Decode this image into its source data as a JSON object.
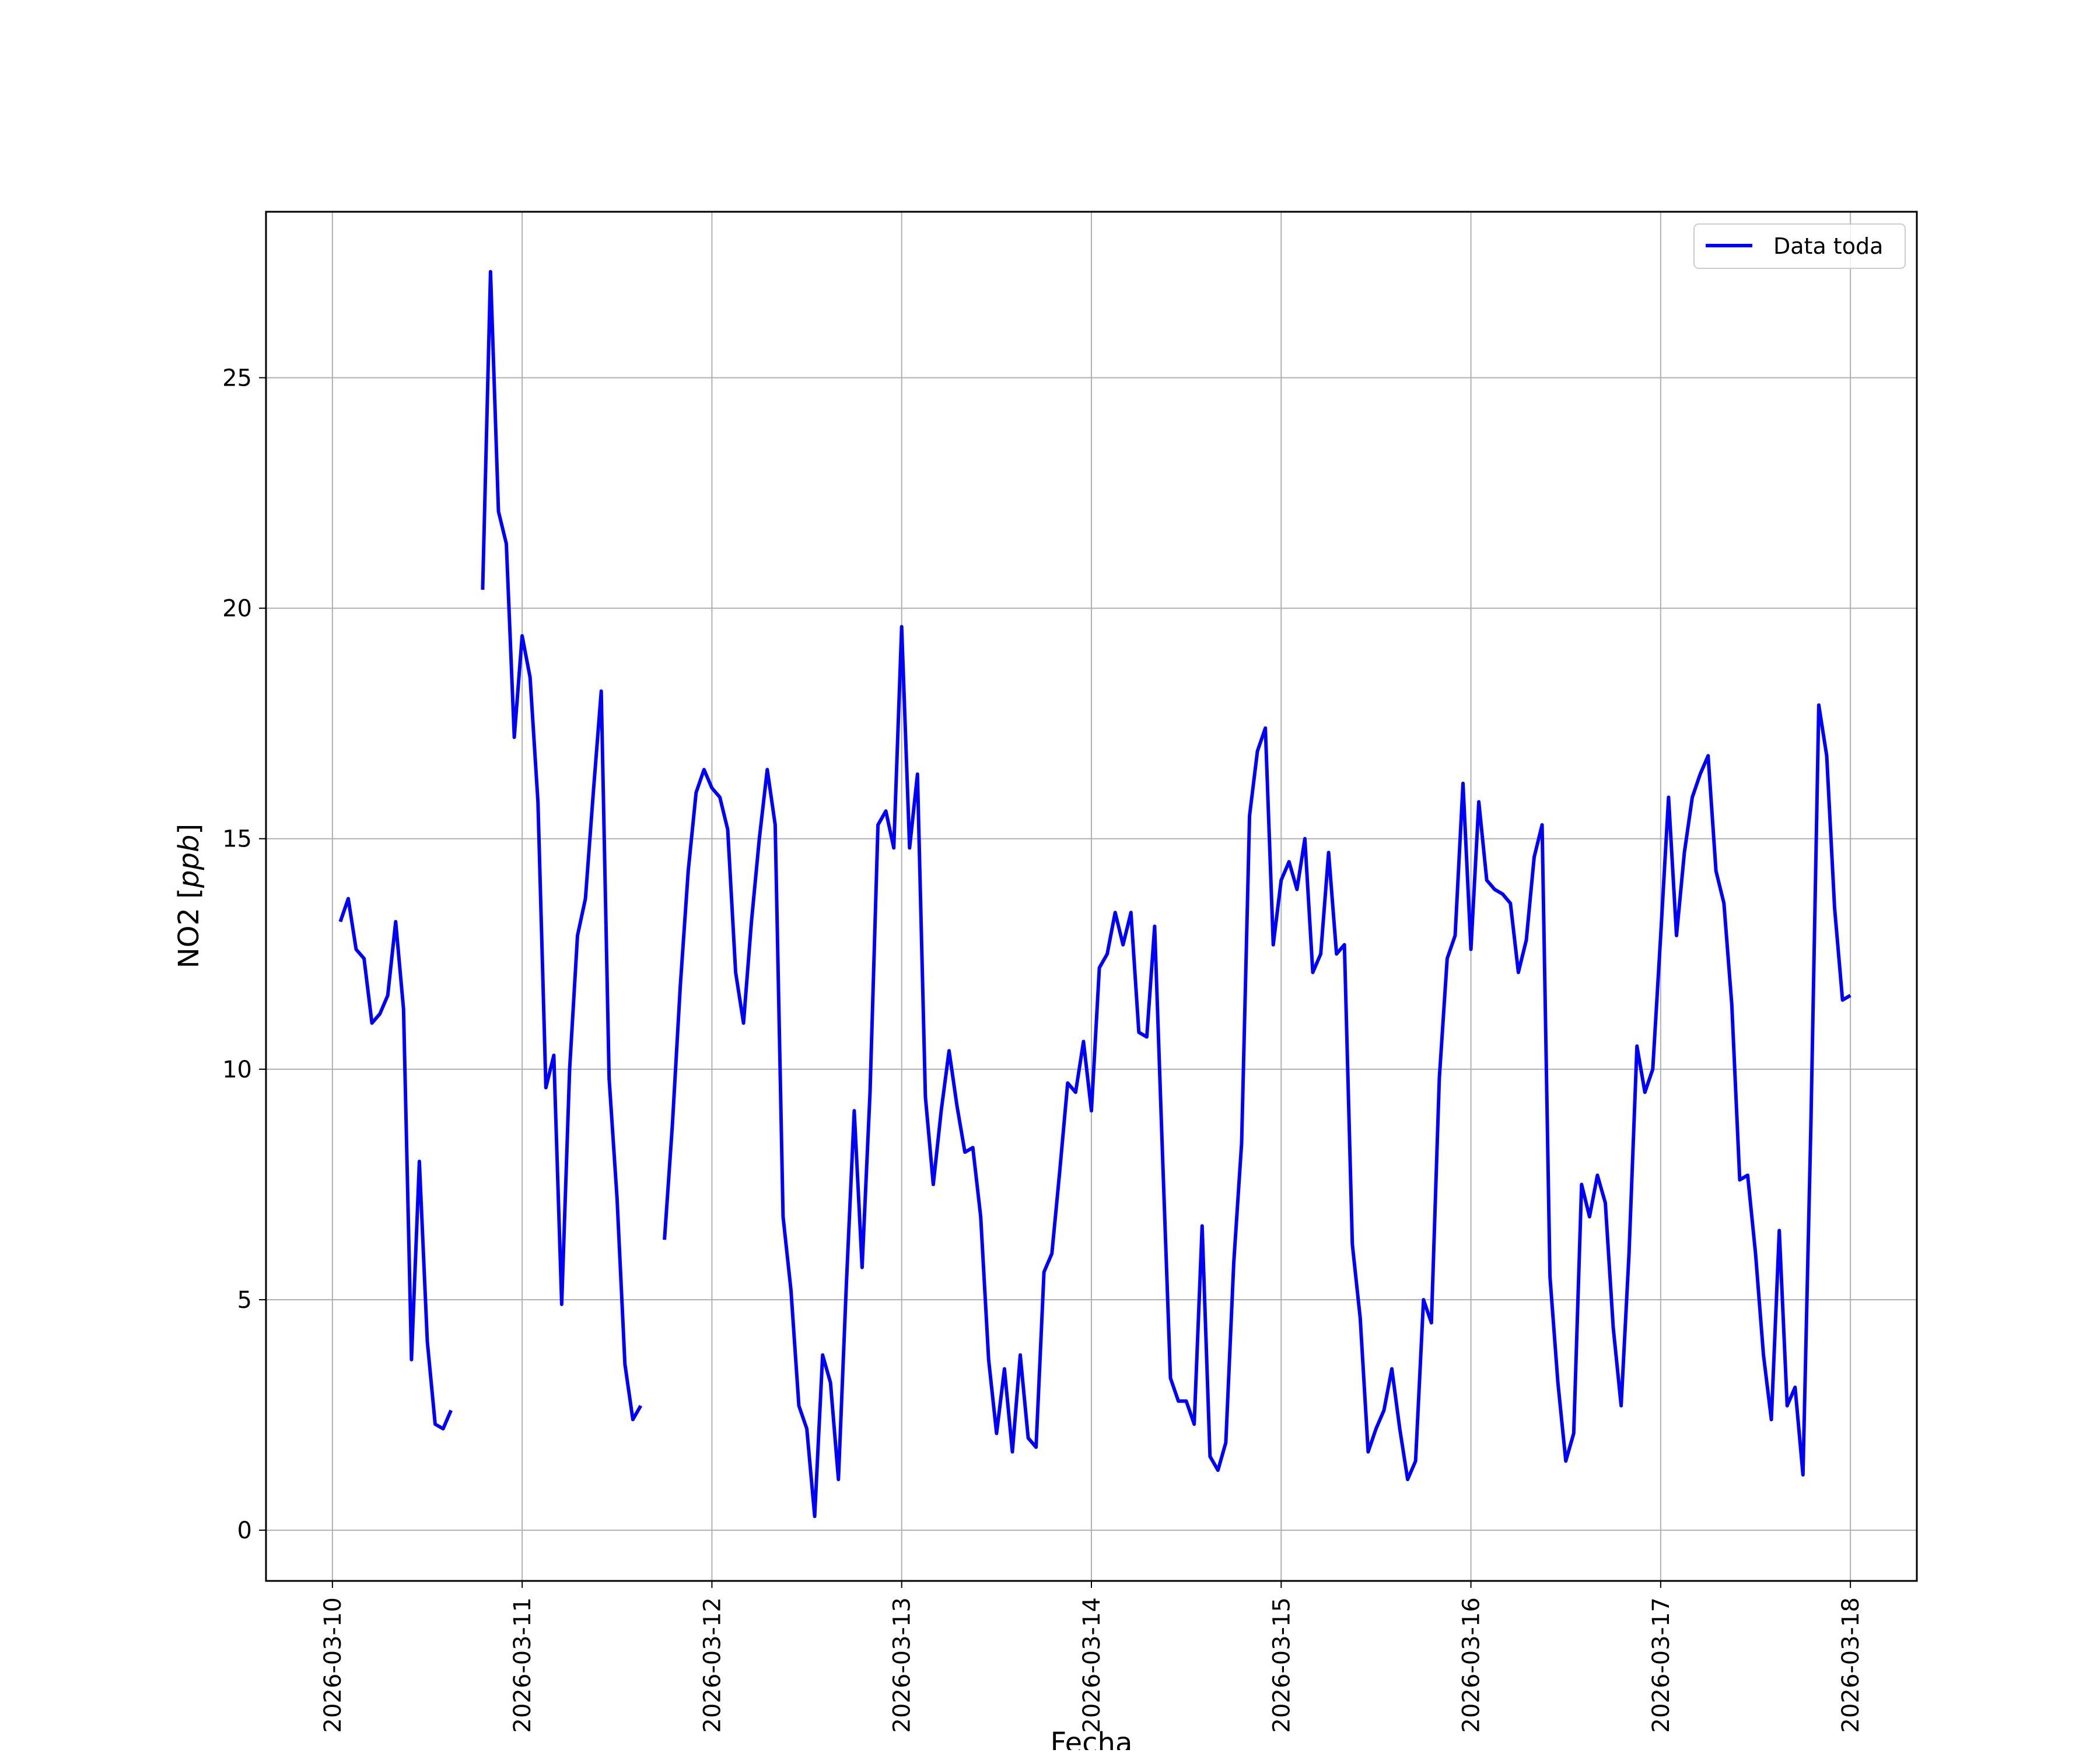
{
  "chart_data": {
    "type": "line",
    "title": "",
    "xlabel": "Fecha",
    "ylabel": "NO2 [ppb]",
    "ylabel_main": "NO2 [",
    "ylabel_italic": "ppb",
    "ylabel_close": "]",
    "xlim": [
      "2026-03-09 15:36",
      "2026-03-18 08:24"
    ],
    "ylim": [
      -1.1,
      28.6
    ],
    "x_tick_labels": [
      "2026-03-10",
      "2026-03-11",
      "2026-03-12",
      "2026-03-13",
      "2026-03-14",
      "2026-03-15",
      "2026-03-16",
      "2026-03-17",
      "2026-03-18"
    ],
    "y_ticks": [
      0,
      5,
      10,
      15,
      20,
      25
    ],
    "y_tick_labels": [
      "0",
      "5",
      "10",
      "15",
      "20",
      "25"
    ],
    "grid": true,
    "legend_position": "top-right",
    "colors": {
      "series": "#0000ff",
      "grid": "#b0b0b0",
      "axes": "#000000"
    },
    "series": [
      {
        "name": "Data toda",
        "points": [
          [
            "2026-03-10 01:00",
            13.2
          ],
          [
            "2026-03-10 02:00",
            13.7
          ],
          [
            "2026-03-10 03:00",
            12.6
          ],
          [
            "2026-03-10 04:00",
            12.4
          ],
          [
            "2026-03-10 05:00",
            11.0
          ],
          [
            "2026-03-10 06:00",
            11.2
          ],
          [
            "2026-03-10 07:00",
            11.6
          ],
          [
            "2026-03-10 08:00",
            13.2
          ],
          [
            "2026-03-10 09:00",
            11.3
          ],
          [
            "2026-03-10 10:00",
            3.7
          ],
          [
            "2026-03-10 11:00",
            8.0
          ],
          [
            "2026-03-10 12:00",
            4.1
          ],
          [
            "2026-03-10 13:00",
            2.3
          ],
          [
            "2026-03-10 14:00",
            2.2
          ],
          [
            "2026-03-10 15:00",
            2.6
          ],
          [
            "2026-03-10 16:00",
            null
          ],
          [
            "2026-03-10 19:00",
            20.4
          ],
          [
            "2026-03-10 20:00",
            27.3
          ],
          [
            "2026-03-10 21:00",
            22.1
          ],
          [
            "2026-03-10 22:00",
            21.4
          ],
          [
            "2026-03-10 23:00",
            17.2
          ],
          [
            "2026-03-11 00:00",
            19.4
          ],
          [
            "2026-03-11 01:00",
            18.5
          ],
          [
            "2026-03-11 02:00",
            15.8
          ],
          [
            "2026-03-11 03:00",
            9.6
          ],
          [
            "2026-03-11 04:00",
            10.3
          ],
          [
            "2026-03-11 05:00",
            4.9
          ],
          [
            "2026-03-11 06:00",
            10.0
          ],
          [
            "2026-03-11 07:00",
            12.9
          ],
          [
            "2026-03-11 08:00",
            13.7
          ],
          [
            "2026-03-11 09:00",
            16.0
          ],
          [
            "2026-03-11 10:00",
            18.2
          ],
          [
            "2026-03-11 11:00",
            9.8
          ],
          [
            "2026-03-11 12:00",
            7.2
          ],
          [
            "2026-03-11 13:00",
            3.6
          ],
          [
            "2026-03-11 14:00",
            2.4
          ],
          [
            "2026-03-11 15:00",
            2.7
          ],
          [
            "2026-03-11 16:00",
            null
          ],
          [
            "2026-03-11 18:00",
            6.3
          ],
          [
            "2026-03-11 19:00",
            8.8
          ],
          [
            "2026-03-11 20:00",
            11.8
          ],
          [
            "2026-03-11 21:00",
            14.3
          ],
          [
            "2026-03-11 22:00",
            16.0
          ],
          [
            "2026-03-11 23:00",
            16.5
          ],
          [
            "2026-03-12 00:00",
            16.1
          ],
          [
            "2026-03-12 01:00",
            15.9
          ],
          [
            "2026-03-12 02:00",
            15.2
          ],
          [
            "2026-03-12 03:00",
            12.1
          ],
          [
            "2026-03-12 04:00",
            11.0
          ],
          [
            "2026-03-12 05:00",
            13.2
          ],
          [
            "2026-03-12 06:00",
            15.0
          ],
          [
            "2026-03-12 07:00",
            16.5
          ],
          [
            "2026-03-12 08:00",
            15.3
          ],
          [
            "2026-03-12 09:00",
            6.8
          ],
          [
            "2026-03-12 10:00",
            5.2
          ],
          [
            "2026-03-12 11:00",
            2.7
          ],
          [
            "2026-03-12 12:00",
            2.2
          ],
          [
            "2026-03-12 13:00",
            0.3
          ],
          [
            "2026-03-12 14:00",
            3.8
          ],
          [
            "2026-03-12 15:00",
            3.2
          ],
          [
            "2026-03-12 16:00",
            1.1
          ],
          [
            "2026-03-12 17:00",
            5.3
          ],
          [
            "2026-03-12 18:00",
            9.1
          ],
          [
            "2026-03-12 19:00",
            5.7
          ],
          [
            "2026-03-12 20:00",
            9.5
          ],
          [
            "2026-03-12 21:00",
            15.3
          ],
          [
            "2026-03-12 22:00",
            15.6
          ],
          [
            "2026-03-12 23:00",
            14.8
          ],
          [
            "2026-03-13 00:00",
            19.6
          ],
          [
            "2026-03-13 01:00",
            14.8
          ],
          [
            "2026-03-13 02:00",
            16.4
          ],
          [
            "2026-03-13 03:00",
            9.4
          ],
          [
            "2026-03-13 04:00",
            7.5
          ],
          [
            "2026-03-13 05:00",
            9.1
          ],
          [
            "2026-03-13 06:00",
            10.4
          ],
          [
            "2026-03-13 07:00",
            9.2
          ],
          [
            "2026-03-13 08:00",
            8.2
          ],
          [
            "2026-03-13 09:00",
            8.3
          ],
          [
            "2026-03-13 10:00",
            6.8
          ],
          [
            "2026-03-13 11:00",
            3.7
          ],
          [
            "2026-03-13 12:00",
            2.1
          ],
          [
            "2026-03-13 13:00",
            3.5
          ],
          [
            "2026-03-13 14:00",
            1.7
          ],
          [
            "2026-03-13 15:00",
            3.8
          ],
          [
            "2026-03-13 16:00",
            2.0
          ],
          [
            "2026-03-13 17:00",
            1.8
          ],
          [
            "2026-03-13 18:00",
            5.6
          ],
          [
            "2026-03-13 19:00",
            6.0
          ],
          [
            "2026-03-13 20:00",
            7.8
          ],
          [
            "2026-03-13 21:00",
            9.7
          ],
          [
            "2026-03-13 22:00",
            9.5
          ],
          [
            "2026-03-13 23:00",
            10.6
          ],
          [
            "2026-03-14 00:00",
            9.1
          ],
          [
            "2026-03-14 01:00",
            12.2
          ],
          [
            "2026-03-14 02:00",
            12.5
          ],
          [
            "2026-03-14 03:00",
            13.4
          ],
          [
            "2026-03-14 04:00",
            12.7
          ],
          [
            "2026-03-14 05:00",
            13.4
          ],
          [
            "2026-03-14 06:00",
            10.8
          ],
          [
            "2026-03-14 07:00",
            10.7
          ],
          [
            "2026-03-14 08:00",
            13.1
          ],
          [
            "2026-03-14 09:00",
            8.1
          ],
          [
            "2026-03-14 10:00",
            3.3
          ],
          [
            "2026-03-14 11:00",
            2.8
          ],
          [
            "2026-03-14 12:00",
            2.8
          ],
          [
            "2026-03-14 13:00",
            2.3
          ],
          [
            "2026-03-14 14:00",
            6.6
          ],
          [
            "2026-03-14 15:00",
            1.6
          ],
          [
            "2026-03-14 16:00",
            1.3
          ],
          [
            "2026-03-14 17:00",
            1.9
          ],
          [
            "2026-03-14 18:00",
            5.8
          ],
          [
            "2026-03-14 19:00",
            8.4
          ],
          [
            "2026-03-14 20:00",
            15.5
          ],
          [
            "2026-03-14 21:00",
            16.9
          ],
          [
            "2026-03-14 22:00",
            17.4
          ],
          [
            "2026-03-14 23:00",
            12.7
          ],
          [
            "2026-03-15 00:00",
            14.1
          ],
          [
            "2026-03-15 01:00",
            14.5
          ],
          [
            "2026-03-15 02:00",
            13.9
          ],
          [
            "2026-03-15 03:00",
            15.0
          ],
          [
            "2026-03-15 04:00",
            12.1
          ],
          [
            "2026-03-15 05:00",
            12.5
          ],
          [
            "2026-03-15 06:00",
            14.7
          ],
          [
            "2026-03-15 07:00",
            12.5
          ],
          [
            "2026-03-15 08:00",
            12.7
          ],
          [
            "2026-03-15 09:00",
            6.2
          ],
          [
            "2026-03-15 10:00",
            4.6
          ],
          [
            "2026-03-15 11:00",
            1.7
          ],
          [
            "2026-03-15 12:00",
            2.2
          ],
          [
            "2026-03-15 13:00",
            2.6
          ],
          [
            "2026-03-15 14:00",
            3.5
          ],
          [
            "2026-03-15 15:00",
            2.2
          ],
          [
            "2026-03-15 16:00",
            1.1
          ],
          [
            "2026-03-15 17:00",
            1.5
          ],
          [
            "2026-03-15 18:00",
            5.0
          ],
          [
            "2026-03-15 19:00",
            4.5
          ],
          [
            "2026-03-15 20:00",
            9.8
          ],
          [
            "2026-03-15 21:00",
            12.4
          ],
          [
            "2026-03-15 22:00",
            12.9
          ],
          [
            "2026-03-15 23:00",
            16.2
          ],
          [
            "2026-03-16 00:00",
            12.6
          ],
          [
            "2026-03-16 01:00",
            15.8
          ],
          [
            "2026-03-16 02:00",
            14.1
          ],
          [
            "2026-03-16 03:00",
            13.9
          ],
          [
            "2026-03-16 04:00",
            13.8
          ],
          [
            "2026-03-16 05:00",
            13.6
          ],
          [
            "2026-03-16 06:00",
            12.1
          ],
          [
            "2026-03-16 07:00",
            12.8
          ],
          [
            "2026-03-16 08:00",
            14.6
          ],
          [
            "2026-03-16 09:00",
            15.3
          ],
          [
            "2026-03-16 10:00",
            5.5
          ],
          [
            "2026-03-16 11:00",
            3.2
          ],
          [
            "2026-03-16 12:00",
            1.5
          ],
          [
            "2026-03-16 13:00",
            2.1
          ],
          [
            "2026-03-16 14:00",
            7.5
          ],
          [
            "2026-03-16 15:00",
            6.8
          ],
          [
            "2026-03-16 16:00",
            7.7
          ],
          [
            "2026-03-16 17:00",
            7.1
          ],
          [
            "2026-03-16 18:00",
            4.4
          ],
          [
            "2026-03-16 19:00",
            2.7
          ],
          [
            "2026-03-16 20:00",
            6.0
          ],
          [
            "2026-03-16 21:00",
            10.5
          ],
          [
            "2026-03-16 22:00",
            9.5
          ],
          [
            "2026-03-16 23:00",
            10.0
          ],
          [
            "2026-03-17 00:00",
            12.9
          ],
          [
            "2026-03-17 01:00",
            15.9
          ],
          [
            "2026-03-17 02:00",
            12.9
          ],
          [
            "2026-03-17 03:00",
            14.7
          ],
          [
            "2026-03-17 04:00",
            15.9
          ],
          [
            "2026-03-17 05:00",
            16.4
          ],
          [
            "2026-03-17 06:00",
            16.8
          ],
          [
            "2026-03-17 07:00",
            14.3
          ],
          [
            "2026-03-17 08:00",
            13.6
          ],
          [
            "2026-03-17 09:00",
            11.4
          ],
          [
            "2026-03-17 10:00",
            7.6
          ],
          [
            "2026-03-17 11:00",
            7.7
          ],
          [
            "2026-03-17 12:00",
            6.0
          ],
          [
            "2026-03-17 13:00",
            3.8
          ],
          [
            "2026-03-17 14:00",
            2.4
          ],
          [
            "2026-03-17 15:00",
            6.5
          ],
          [
            "2026-03-17 16:00",
            2.7
          ],
          [
            "2026-03-17 17:00",
            3.1
          ],
          [
            "2026-03-17 18:00",
            1.2
          ],
          [
            "2026-03-17 19:00",
            8.8
          ],
          [
            "2026-03-17 20:00",
            17.9
          ],
          [
            "2026-03-17 21:00",
            16.8
          ],
          [
            "2026-03-17 22:00",
            13.5
          ],
          [
            "2026-03-17 23:00",
            11.5
          ],
          [
            "2026-03-18 00:00",
            11.6
          ]
        ]
      }
    ]
  }
}
